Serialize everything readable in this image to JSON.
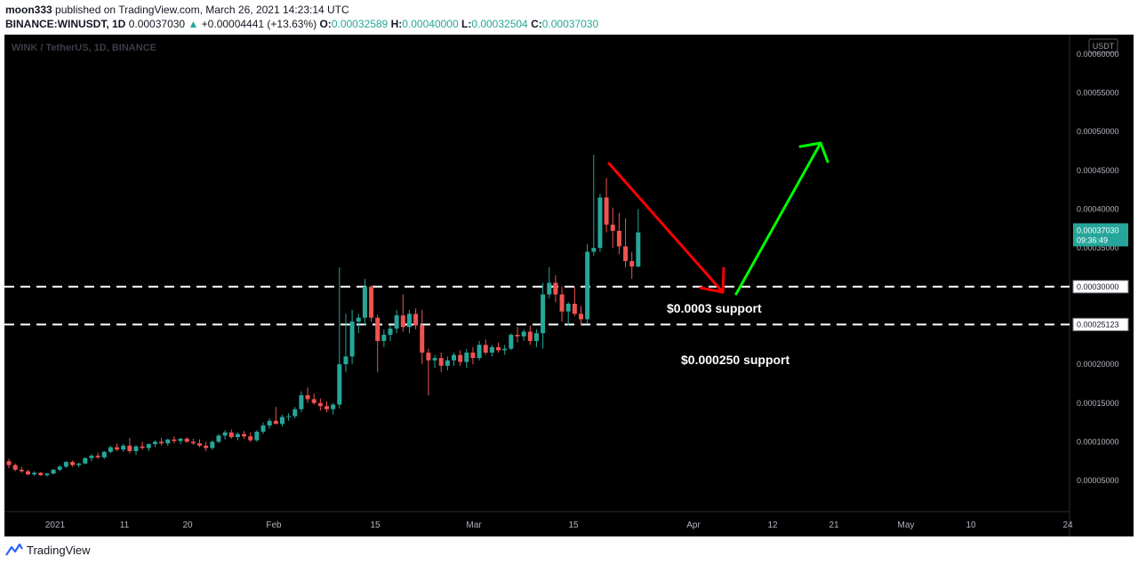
{
  "header": {
    "author": "moon333",
    "published_text": "published on TradingView.com, March 26, 2021 14:23:14 UTC",
    "symbol": "BINANCE:WINUSDT, 1D",
    "last": "0.00037030",
    "change": "+0.00004441 (+13.63%)",
    "o_label": "O:",
    "o_value": "0.00032589",
    "h_label": "H:",
    "h_value": "0.00040000",
    "l_label": "L:",
    "l_value": "0.00032504",
    "c_label": "C:",
    "c_value": "0.00037030"
  },
  "chart": {
    "watermark": "WINK / TetherUS, 1D, BINANCE",
    "currency": "USDT",
    "price_labels": [
      "0.00060000",
      "0.00055000",
      "0.00050000",
      "0.00045000",
      "0.00040000",
      "0.00035000",
      "0.00030000",
      "0.00025000",
      "0.00020000",
      "0.00015000",
      "0.00010000",
      "0.00005000"
    ],
    "last_price_tag": "0.00037030",
    "countdown": "09:36:49",
    "line_tags": [
      "0.00030000",
      "0.00025123"
    ],
    "x_labels": [
      "2021",
      "11",
      "20",
      "Feb",
      "15",
      "Mar",
      "15",
      "Apr",
      "12",
      "21",
      "May",
      "10",
      "24"
    ],
    "annotations": [
      "$0.0003 support",
      "$0.000250 support"
    ]
  },
  "colors": {
    "up": "#26a69a",
    "down": "#ef5350",
    "arrow_red": "#ff0000",
    "arrow_green": "#00ff00"
  },
  "chart_data": {
    "type": "candlestick",
    "ylabel": "USDT",
    "ylim": [
      1e-05,
      0.000625
    ],
    "support_levels": [
      0.0003,
      0.00025123
    ],
    "ohlc": [
      [
        7.5e-05,
        7.8e-05,
        6.6e-05,
        7e-05
      ],
      [
        7e-05,
        7.2e-05,
        6.2e-05,
        6.4e-05
      ],
      [
        6.4e-05,
        6.8e-05,
        6e-05,
        6.2e-05
      ],
      [
        6.2e-05,
        6.4e-05,
        5.7e-05,
        5.8e-05
      ],
      [
        5.8e-05,
        6.2e-05,
        5.6e-05,
        6e-05
      ],
      [
        6e-05,
        6.1e-05,
        5.6e-05,
        5.7e-05
      ],
      [
        5.7e-05,
        6e-05,
        5.5e-05,
        5.9e-05
      ],
      [
        5.9e-05,
        6.5e-05,
        5.8e-05,
        6.4e-05
      ],
      [
        6.4e-05,
        7e-05,
        6.2e-05,
        6.8e-05
      ],
      [
        6.8e-05,
        7.5e-05,
        6.6e-05,
        7.4e-05
      ],
      [
        7.4e-05,
        7.6e-05,
        6.8e-05,
        7e-05
      ],
      [
        7e-05,
        7.3e-05,
        6.7e-05,
        7.2e-05
      ],
      [
        7.2e-05,
        8e-05,
        7.1e-05,
        7.9e-05
      ],
      [
        7.9e-05,
        8.4e-05,
        7.5e-05,
        8.2e-05
      ],
      [
        8.2e-05,
        8.6e-05,
        7.8e-05,
        8e-05
      ],
      [
        8e-05,
        8.8e-05,
        7.8e-05,
        8.7e-05
      ],
      [
        8.7e-05,
        9.5e-05,
        8.5e-05,
        9.3e-05
      ],
      [
        9.3e-05,
        9.8e-05,
        8.8e-05,
        9e-05
      ],
      [
        9e-05,
        9.7e-05,
        8.7e-05,
        9.5e-05
      ],
      [
        9.5e-05,
        0.000105,
        8.5e-05,
        8.8e-05
      ],
      [
        8.8e-05,
        9.6e-05,
        8.3e-05,
        9.4e-05
      ],
      [
        9.4e-05,
        0.0001,
        9e-05,
        9.2e-05
      ],
      [
        9.2e-05,
        9.8e-05,
        8.8e-05,
        9.7e-05
      ],
      [
        9.7e-05,
        0.000102,
        9.3e-05,
        0.0001
      ],
      [
        0.0001,
        0.000105,
        9.5e-05,
        9.8e-05
      ],
      [
        9.8e-05,
        0.000104,
        9.5e-05,
        0.000103
      ],
      [
        0.000103,
        0.000107,
        9.8e-05,
        0.000101
      ],
      [
        0.000101,
        0.000105,
        9.7e-05,
        0.000104
      ],
      [
        0.000104,
        0.000106,
        9.9e-05,
        0.0001
      ],
      [
        0.0001,
        0.000104,
        9.6e-05,
        9.8e-05
      ],
      [
        9.8e-05,
        0.000103,
        9.3e-05,
        9.5e-05
      ],
      [
        9.5e-05,
        0.0001,
        8.8e-05,
        9.2e-05
      ],
      [
        9.2e-05,
        0.000102,
        9e-05,
        0.0001
      ],
      [
        0.0001,
        0.00011,
        9.8e-05,
        0.000108
      ],
      [
        0.000108,
        0.000115,
        0.000103,
        0.000112
      ],
      [
        0.000112,
        0.000116,
        0.000104,
        0.000106
      ],
      [
        0.000106,
        0.000112,
        0.000102,
        0.00011
      ],
      [
        0.00011,
        0.000114,
        0.000104,
        0.000107
      ],
      [
        0.000107,
        0.000112,
        0.0001,
        0.000102
      ],
      [
        0.000102,
        0.000115,
        0.0001,
        0.000113
      ],
      [
        0.000113,
        0.000125,
        0.00011,
        0.000121
      ],
      [
        0.000121,
        0.00013,
        0.000117,
        0.000127
      ],
      [
        0.000127,
        0.000145,
        0.000123,
        0.000123
      ],
      [
        0.000123,
        0.000135,
        0.00012,
        0.000132
      ],
      [
        0.000132,
        0.000137,
        0.000127,
        0.000133
      ],
      [
        0.000133,
        0.000145,
        0.00013,
        0.000142
      ],
      [
        0.000142,
        0.000165,
        0.000138,
        0.00016
      ],
      [
        0.00016,
        0.00017,
        0.00015,
        0.000155
      ],
      [
        0.000155,
        0.000162,
        0.000148,
        0.00015
      ],
      [
        0.00015,
        0.000156,
        0.00014,
        0.000146
      ],
      [
        0.000146,
        0.000152,
        0.000138,
        0.000142
      ],
      [
        0.000142,
        0.00015,
        0.000135,
        0.000148
      ],
      [
        0.000148,
        0.000325,
        0.000143,
        0.0002
      ],
      [
        0.0002,
        0.000265,
        0.00019,
        0.00021
      ],
      [
        0.00021,
        0.00027,
        0.0002,
        0.000255
      ],
      [
        0.000255,
        0.000265,
        0.00024,
        0.00026
      ],
      [
        0.00026,
        0.00031,
        0.00025,
        0.0003
      ],
      [
        0.0003,
        0.000302,
        0.000255,
        0.00026
      ],
      [
        0.00026,
        0.000264,
        0.00019,
        0.00023
      ],
      [
        0.00023,
        0.000245,
        0.000222,
        0.000238
      ],
      [
        0.000238,
        0.00025,
        0.00023,
        0.000246
      ],
      [
        0.000246,
        0.00027,
        0.00024,
        0.000263
      ],
      [
        0.000263,
        0.00029,
        0.000242,
        0.000248
      ],
      [
        0.000248,
        0.00027,
        0.00024,
        0.000265
      ],
      [
        0.000265,
        0.000272,
        0.000245,
        0.00025
      ],
      [
        0.00025,
        0.00027,
        0.0002,
        0.000215
      ],
      [
        0.000215,
        0.00022,
        0.00016,
        0.000205
      ],
      [
        0.000205,
        0.000212,
        0.000195,
        0.000208
      ],
      [
        0.000208,
        0.000215,
        0.00019,
        0.000198
      ],
      [
        0.000198,
        0.00021,
        0.000192,
        0.000205
      ],
      [
        0.000205,
        0.000215,
        0.000198,
        0.000212
      ],
      [
        0.000212,
        0.000218,
        0.000198,
        0.000203
      ],
      [
        0.000203,
        0.00022,
        0.000195,
        0.000215
      ],
      [
        0.000215,
        0.000222,
        0.0002,
        0.000208
      ],
      [
        0.000208,
        0.00023,
        0.000205,
        0.000225
      ],
      [
        0.000225,
        0.000232,
        0.000212,
        0.000215
      ],
      [
        0.000215,
        0.000225,
        0.00021,
        0.000222
      ],
      [
        0.000222,
        0.000228,
        0.000215,
        0.000218
      ],
      [
        0.000218,
        0.000225,
        0.000212,
        0.00022
      ],
      [
        0.00022,
        0.00024,
        0.000218,
        0.000238
      ],
      [
        0.000238,
        0.000248,
        0.000228,
        0.000236
      ],
      [
        0.000236,
        0.000245,
        0.00023,
        0.000242
      ],
      [
        0.000242,
        0.00025,
        0.000225,
        0.00023
      ],
      [
        0.00023,
        0.000245,
        0.000222,
        0.00024
      ],
      [
        0.00024,
        0.000305,
        0.00022,
        0.00029
      ],
      [
        0.00029,
        0.000325,
        0.000285,
        0.000305
      ],
      [
        0.000305,
        0.000315,
        0.00028,
        0.00029
      ],
      [
        0.00029,
        0.0003,
        0.000255,
        0.000268
      ],
      [
        0.000268,
        0.00028,
        0.00025,
        0.000278
      ],
      [
        0.000278,
        0.0003,
        0.000262,
        0.000265
      ],
      [
        0.000265,
        0.000275,
        0.00025,
        0.000258
      ],
      [
        0.000258,
        0.000355,
        0.000252,
        0.000345
      ],
      [
        0.000345,
        0.00047,
        0.00034,
        0.00035
      ],
      [
        0.00035,
        0.00042,
        0.000345,
        0.000415
      ],
      [
        0.000415,
        0.00044,
        0.00037,
        0.00038
      ],
      [
        0.00038,
        0.000402,
        0.00035,
        0.000372
      ],
      [
        0.000372,
        0.000395,
        0.000342,
        0.000352
      ],
      [
        0.000352,
        0.000388,
        0.000325,
        0.000333
      ],
      [
        0.000333,
        0.000345,
        0.00031,
        0.000326
      ],
      [
        0.000326,
        0.0004,
        0.000325,
        0.00037
      ]
    ]
  }
}
